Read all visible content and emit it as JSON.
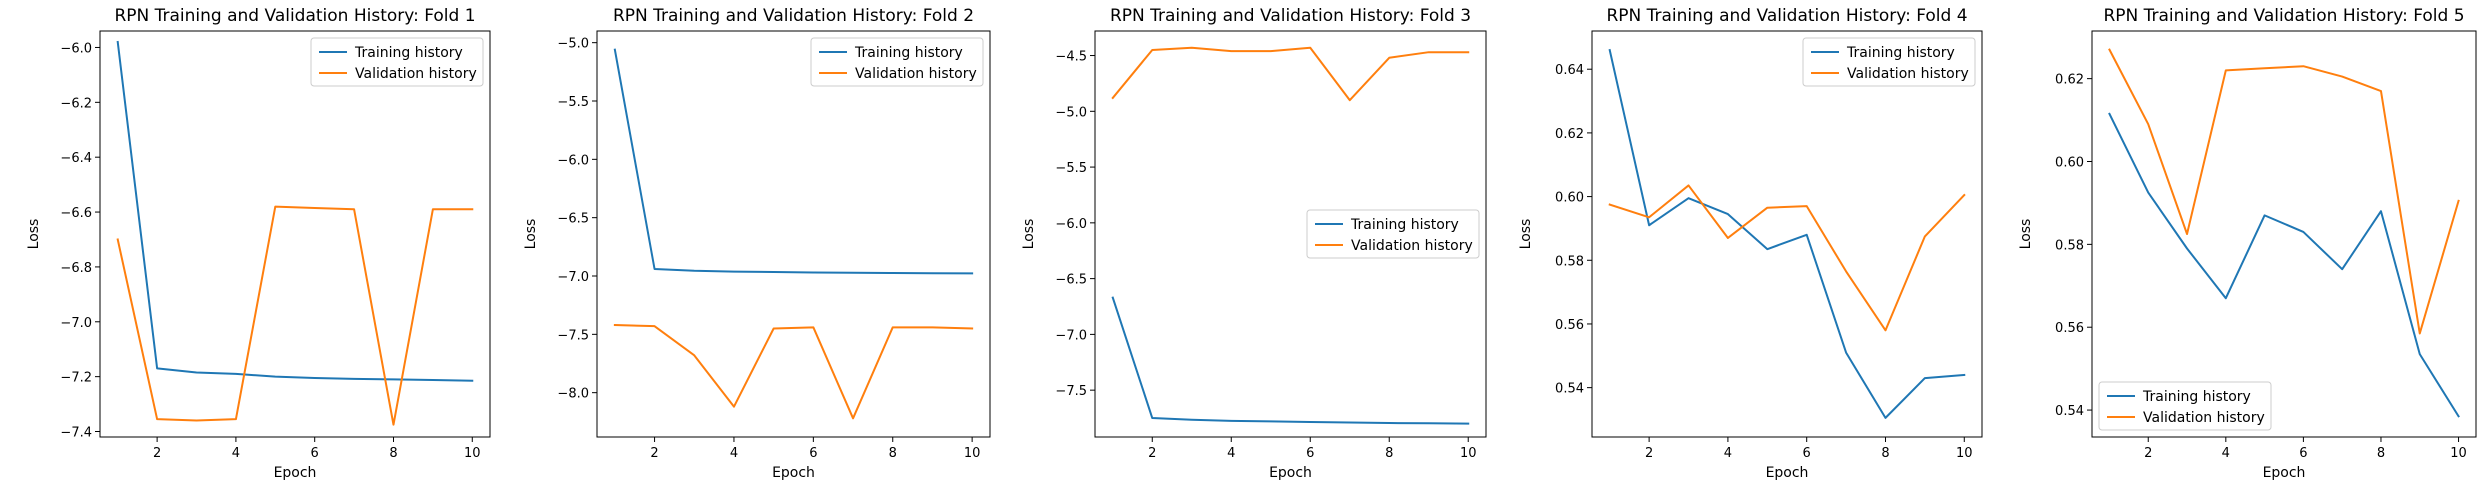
{
  "chart_data": [
    {
      "type": "line",
      "title": "RPN Training and Validation History: Fold 1",
      "xlabel": "Epoch",
      "ylabel": "Loss",
      "xlim": [
        0.55,
        10.45
      ],
      "ylim": [
        -7.42,
        -5.94
      ],
      "xticks": [
        2,
        4,
        6,
        8,
        10
      ],
      "yticks": [
        -7.4,
        -7.2,
        -7.0,
        -6.8,
        -6.6,
        -6.4,
        -6.2,
        -6.0
      ],
      "legend": "top-right",
      "grid": false,
      "x": [
        1,
        2,
        3,
        4,
        5,
        6,
        7,
        8,
        9,
        10
      ],
      "series": [
        {
          "name": "Training history",
          "color": "#1f77b4",
          "values": [
            -5.98,
            -7.17,
            -7.185,
            -7.19,
            -7.2,
            -7.205,
            -7.208,
            -7.21,
            -7.212,
            -7.215
          ]
        },
        {
          "name": "Validation history",
          "color": "#ff7f0e",
          "values": [
            -6.7,
            -7.355,
            -7.36,
            -7.355,
            -6.58,
            -6.585,
            -6.59,
            -7.375,
            -6.59,
            -6.59
          ]
        }
      ]
    },
    {
      "type": "line",
      "title": "RPN Training and Validation History: Fold 2",
      "xlabel": "Epoch",
      "ylabel": "Loss",
      "xlim": [
        0.55,
        10.45
      ],
      "ylim": [
        -8.38,
        -4.9
      ],
      "xticks": [
        2,
        4,
        6,
        8,
        10
      ],
      "yticks": [
        -8.0,
        -7.5,
        -7.0,
        -6.5,
        -6.0,
        -5.5,
        -5.0
      ],
      "legend": "top-right",
      "grid": false,
      "x": [
        1,
        2,
        3,
        4,
        5,
        6,
        7,
        8,
        9,
        10
      ],
      "series": [
        {
          "name": "Training history",
          "color": "#1f77b4",
          "values": [
            -5.06,
            -6.94,
            -6.955,
            -6.962,
            -6.966,
            -6.97,
            -6.972,
            -6.974,
            -6.976,
            -6.978
          ]
        },
        {
          "name": "Validation history",
          "color": "#ff7f0e",
          "values": [
            -7.42,
            -7.43,
            -7.68,
            -8.12,
            -7.45,
            -7.44,
            -8.22,
            -7.44,
            -7.44,
            -7.45
          ]
        }
      ]
    },
    {
      "type": "line",
      "title": "RPN Training and Validation History: Fold 3",
      "xlabel": "Epoch",
      "ylabel": "Loss",
      "xlim": [
        0.55,
        10.45
      ],
      "ylim": [
        -7.92,
        -4.28
      ],
      "xticks": [
        2,
        4,
        6,
        8,
        10
      ],
      "yticks": [
        -7.5,
        -7.0,
        -6.5,
        -6.0,
        -5.5,
        -5.0,
        -4.5
      ],
      "legend": "center-right",
      "grid": false,
      "x": [
        1,
        2,
        3,
        4,
        5,
        6,
        7,
        8,
        9,
        10
      ],
      "series": [
        {
          "name": "Training history",
          "color": "#1f77b4",
          "values": [
            -6.67,
            -7.75,
            -7.765,
            -7.775,
            -7.78,
            -7.785,
            -7.79,
            -7.795,
            -7.797,
            -7.8
          ]
        },
        {
          "name": "Validation history",
          "color": "#ff7f0e",
          "values": [
            -4.88,
            -4.45,
            -4.43,
            -4.46,
            -4.46,
            -4.43,
            -4.9,
            -4.52,
            -4.47,
            -4.47
          ]
        }
      ]
    },
    {
      "type": "line",
      "title": "RPN Training and Validation History: Fold 4",
      "xlabel": "Epoch",
      "ylabel": "Loss",
      "xlim": [
        0.55,
        10.45
      ],
      "ylim": [
        0.5245,
        0.652
      ],
      "xticks": [
        2,
        4,
        6,
        8,
        10
      ],
      "yticks": [
        0.54,
        0.56,
        0.58,
        0.6,
        0.62,
        0.64
      ],
      "legend": "top-right",
      "grid": false,
      "x": [
        1,
        2,
        3,
        4,
        5,
        6,
        7,
        8,
        9,
        10
      ],
      "series": [
        {
          "name": "Training history",
          "color": "#1f77b4",
          "values": [
            0.646,
            0.591,
            0.5995,
            0.5945,
            0.5835,
            0.588,
            0.551,
            0.5305,
            0.543,
            0.544
          ]
        },
        {
          "name": "Validation history",
          "color": "#ff7f0e",
          "values": [
            0.5975,
            0.5935,
            0.6035,
            0.587,
            0.5965,
            0.597,
            0.5765,
            0.558,
            0.5875,
            0.6005
          ]
        }
      ]
    },
    {
      "type": "line",
      "title": "RPN Training and Validation History: Fold 5",
      "xlabel": "Epoch",
      "ylabel": "Loss",
      "xlim": [
        0.55,
        10.45
      ],
      "ylim": [
        0.5335,
        0.6315
      ],
      "xticks": [
        2,
        4,
        6,
        8,
        10
      ],
      "yticks": [
        0.54,
        0.56,
        0.58,
        0.6,
        0.62
      ],
      "legend": "bottom-left",
      "grid": false,
      "x": [
        1,
        2,
        3,
        4,
        5,
        6,
        7,
        8,
        9,
        10
      ],
      "series": [
        {
          "name": "Training history",
          "color": "#1f77b4",
          "values": [
            0.6115,
            0.5925,
            0.579,
            0.567,
            0.587,
            0.583,
            0.574,
            0.588,
            0.5535,
            0.5385
          ]
        },
        {
          "name": "Validation history",
          "color": "#ff7f0e",
          "values": [
            0.627,
            0.609,
            0.5825,
            0.622,
            0.6225,
            0.623,
            0.6205,
            0.617,
            0.5585,
            0.5905
          ]
        }
      ]
    }
  ]
}
